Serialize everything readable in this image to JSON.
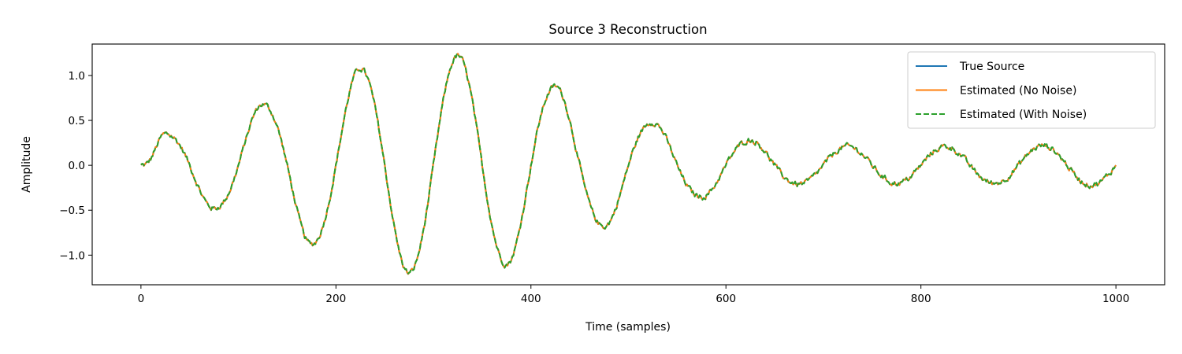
{
  "chart_data": {
    "type": "line",
    "title": "Source 3 Reconstruction",
    "xlabel": "Time (samples)",
    "ylabel": "Amplitude",
    "xlim": [
      -50,
      1050
    ],
    "ylim": [
      -1.33,
      1.35
    ],
    "xticks": [
      0,
      200,
      400,
      600,
      800,
      1000
    ],
    "xtick_labels": [
      "0",
      "200",
      "400",
      "600",
      "800",
      "1000"
    ],
    "yticks": [
      -1.0,
      -0.5,
      0.0,
      0.5,
      1.0
    ],
    "ytick_labels": [
      "−1.0",
      "−0.5",
      "0.0",
      "0.5",
      "1.0"
    ],
    "grid": false,
    "legend_position": "top-right",
    "envelope_points": {
      "x": [
        0,
        25,
        75,
        125,
        175,
        225,
        275,
        325,
        375,
        425,
        475,
        525,
        575,
        625,
        675,
        725,
        775,
        825,
        875,
        925,
        975,
        1000
      ],
      "y": [
        0,
        0.35,
        0.48,
        0.68,
        0.88,
        1.08,
        1.2,
        1.22,
        1.1,
        0.88,
        0.68,
        0.48,
        0.35,
        0.28,
        0.21,
        0.21,
        0.2,
        0.21,
        0.2,
        0.22,
        0.22,
        0.22
      ]
    },
    "period_samples": 100,
    "n_samples": 1000,
    "series": [
      {
        "name": "True Source",
        "color": "#1f77b4",
        "style": "solid"
      },
      {
        "name": "Estimated (No Noise)",
        "color": "#ff7f0e",
        "style": "solid"
      },
      {
        "name": "Estimated (With Noise)",
        "color": "#2ca02c",
        "style": "dashed"
      }
    ]
  }
}
